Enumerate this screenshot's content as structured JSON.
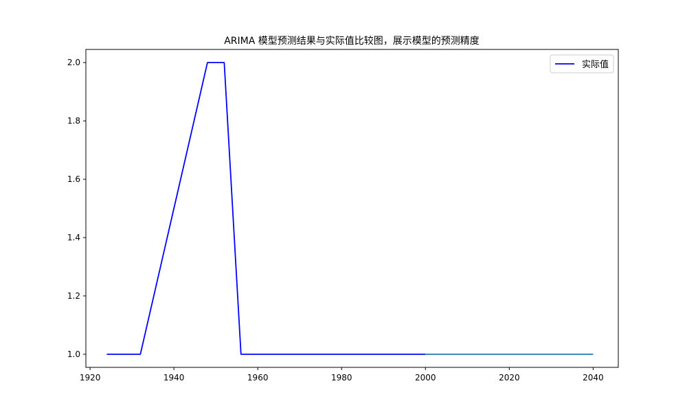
{
  "chart_data": {
    "type": "line",
    "title": "ARIMA 模型预测结果与实际值比较图，展示模型的预测精度",
    "xlabel": "",
    "ylabel": "",
    "xlim": [
      1919,
      2046
    ],
    "ylim": [
      0.955,
      2.045
    ],
    "x_ticks": [
      1920,
      1940,
      1960,
      1980,
      2000,
      2020,
      2040
    ],
    "y_ticks": [
      1.0,
      1.2,
      1.4,
      1.6,
      1.8,
      2.0
    ],
    "x_tick_labels": [
      "1920",
      "1940",
      "1960",
      "1980",
      "2000",
      "2020",
      "2040"
    ],
    "y_tick_labels": [
      "1.0",
      "1.2",
      "1.4",
      "1.6",
      "1.8",
      "2.0"
    ],
    "grid": false,
    "legend_position": "top-right",
    "series": [
      {
        "name": "实际值",
        "color": "#0000ff",
        "in_legend": true,
        "x": [
          1924,
          1932,
          1948,
          1952,
          1956,
          2000
        ],
        "y": [
          1.0,
          1.0,
          2.0,
          2.0,
          1.0,
          1.0
        ]
      },
      {
        "name": "",
        "color": "#1f77b4",
        "in_legend": false,
        "x": [
          2000,
          2040
        ],
        "y": [
          1.0,
          1.0
        ]
      }
    ]
  }
}
